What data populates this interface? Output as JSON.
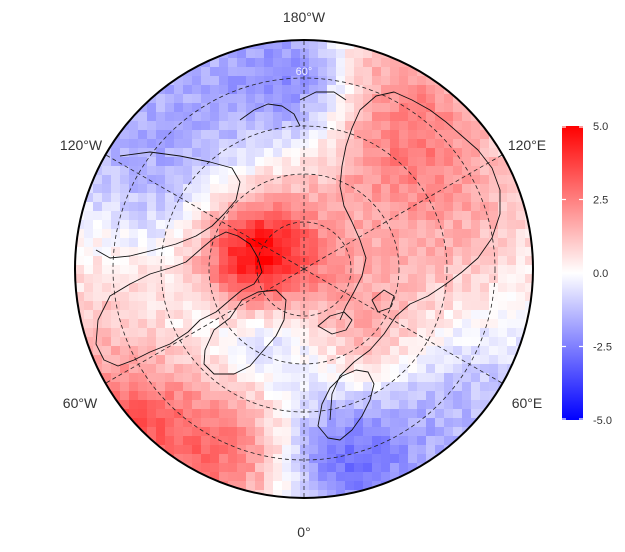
{
  "map": {
    "projection": "north-polar-stereographic",
    "graticule": {
      "meridian_labels": [
        "180°W",
        "120°W",
        "120°E",
        "60°W",
        "60°E",
        "0°"
      ],
      "parallel_label": "60°",
      "style": "dashed"
    },
    "fill": "temperature anomaly field (blue negative, red positive)",
    "overlay": "coastlines and country borders"
  },
  "colorbar": {
    "min": -5.0,
    "max": 5.0,
    "ticks": [
      "5.0",
      "2.5",
      "0.0",
      "-2.5",
      "-5.0"
    ],
    "colors": {
      "low": "#0000ff",
      "mid": "#ffffff",
      "high": "#ff0000"
    }
  }
}
